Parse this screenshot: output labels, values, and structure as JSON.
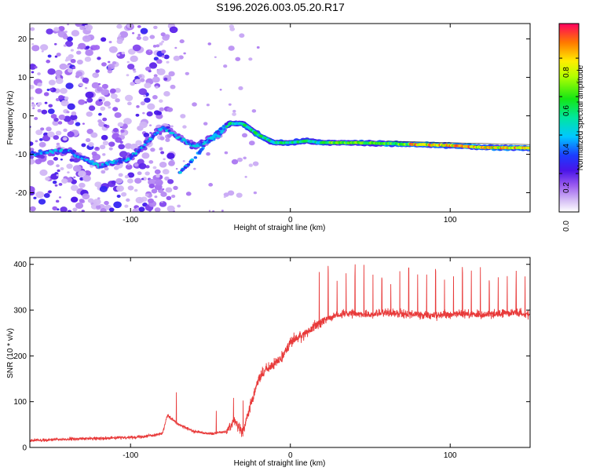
{
  "title": "S196.2026.003.05.20.R17",
  "chart_data": [
    {
      "type": "heatmap",
      "name": "spectrogram",
      "xlabel": "Height of straight line (km)",
      "ylabel": "Frequency (Hz)",
      "xlim": [
        -163,
        150
      ],
      "ylim": [
        -25,
        24
      ],
      "xticks": [
        -100,
        0,
        100
      ],
      "xtick_labels": [
        "-100",
        "0",
        "100"
      ],
      "yticks": [
        -20,
        -10,
        0,
        10,
        20
      ],
      "ytick_labels": [
        "-20",
        "-10",
        "0",
        "10",
        "20"
      ],
      "colorbar": {
        "label": "Normalized spectral amplitude",
        "range": [
          0.0,
          0.98
        ],
        "ticks": [
          0.0,
          0.2,
          0.4,
          0.6,
          0.8
        ],
        "tick_labels": [
          "0.0",
          "0.2",
          "0.4",
          "0.6",
          "0.8"
        ]
      },
      "ridge": {
        "description_points_x": [
          -163,
          -140,
          -120,
          -100,
          -80,
          -60,
          -45,
          -38,
          -30,
          -20,
          -10,
          0,
          10,
          20,
          40,
          60,
          80,
          100,
          120,
          150
        ],
        "description_points_y": [
          -10,
          -9,
          -13,
          -11,
          -3,
          -8,
          -5,
          -2,
          -2,
          -5,
          -7,
          -7,
          -6.5,
          -7,
          -7,
          -7.2,
          -7.5,
          -7.7,
          -8.2,
          -8.4
        ]
      },
      "secondary_branch_x": [
        -70,
        -60,
        -50,
        -40
      ],
      "secondary_branch_y": [
        -15,
        -11,
        -6,
        -2
      ]
    },
    {
      "type": "line",
      "name": "snr",
      "xlabel": "Height of straight line (km)",
      "ylabel": "SNR (10 * v/v)",
      "xlim": [
        -163,
        150
      ],
      "ylim": [
        0,
        415
      ],
      "xticks": [
        -100,
        0,
        100
      ],
      "xtick_labels": [
        "-100",
        "0",
        "100"
      ],
      "yticks": [
        0,
        100,
        200,
        300,
        400
      ],
      "ytick_labels": [
        "0",
        "100",
        "200",
        "300",
        "400"
      ],
      "color": "#e83a3a",
      "x": [
        -163,
        -140,
        -120,
        -100,
        -90,
        -80,
        -77,
        -70,
        -60,
        -50,
        -40,
        -35,
        -30,
        -25,
        -20,
        -15,
        -10,
        -5,
        0,
        5,
        10,
        15,
        20,
        25,
        30,
        40,
        50,
        60,
        70,
        80,
        90,
        100,
        110,
        120,
        130,
        140,
        150
      ],
      "y": [
        15,
        18,
        20,
        22,
        25,
        30,
        70,
        50,
        35,
        30,
        35,
        60,
        30,
        90,
        150,
        170,
        180,
        200,
        230,
        240,
        250,
        265,
        275,
        285,
        290,
        292,
        290,
        295,
        292,
        290,
        288,
        290,
        292,
        290,
        292,
        295,
        290
      ]
    }
  ]
}
